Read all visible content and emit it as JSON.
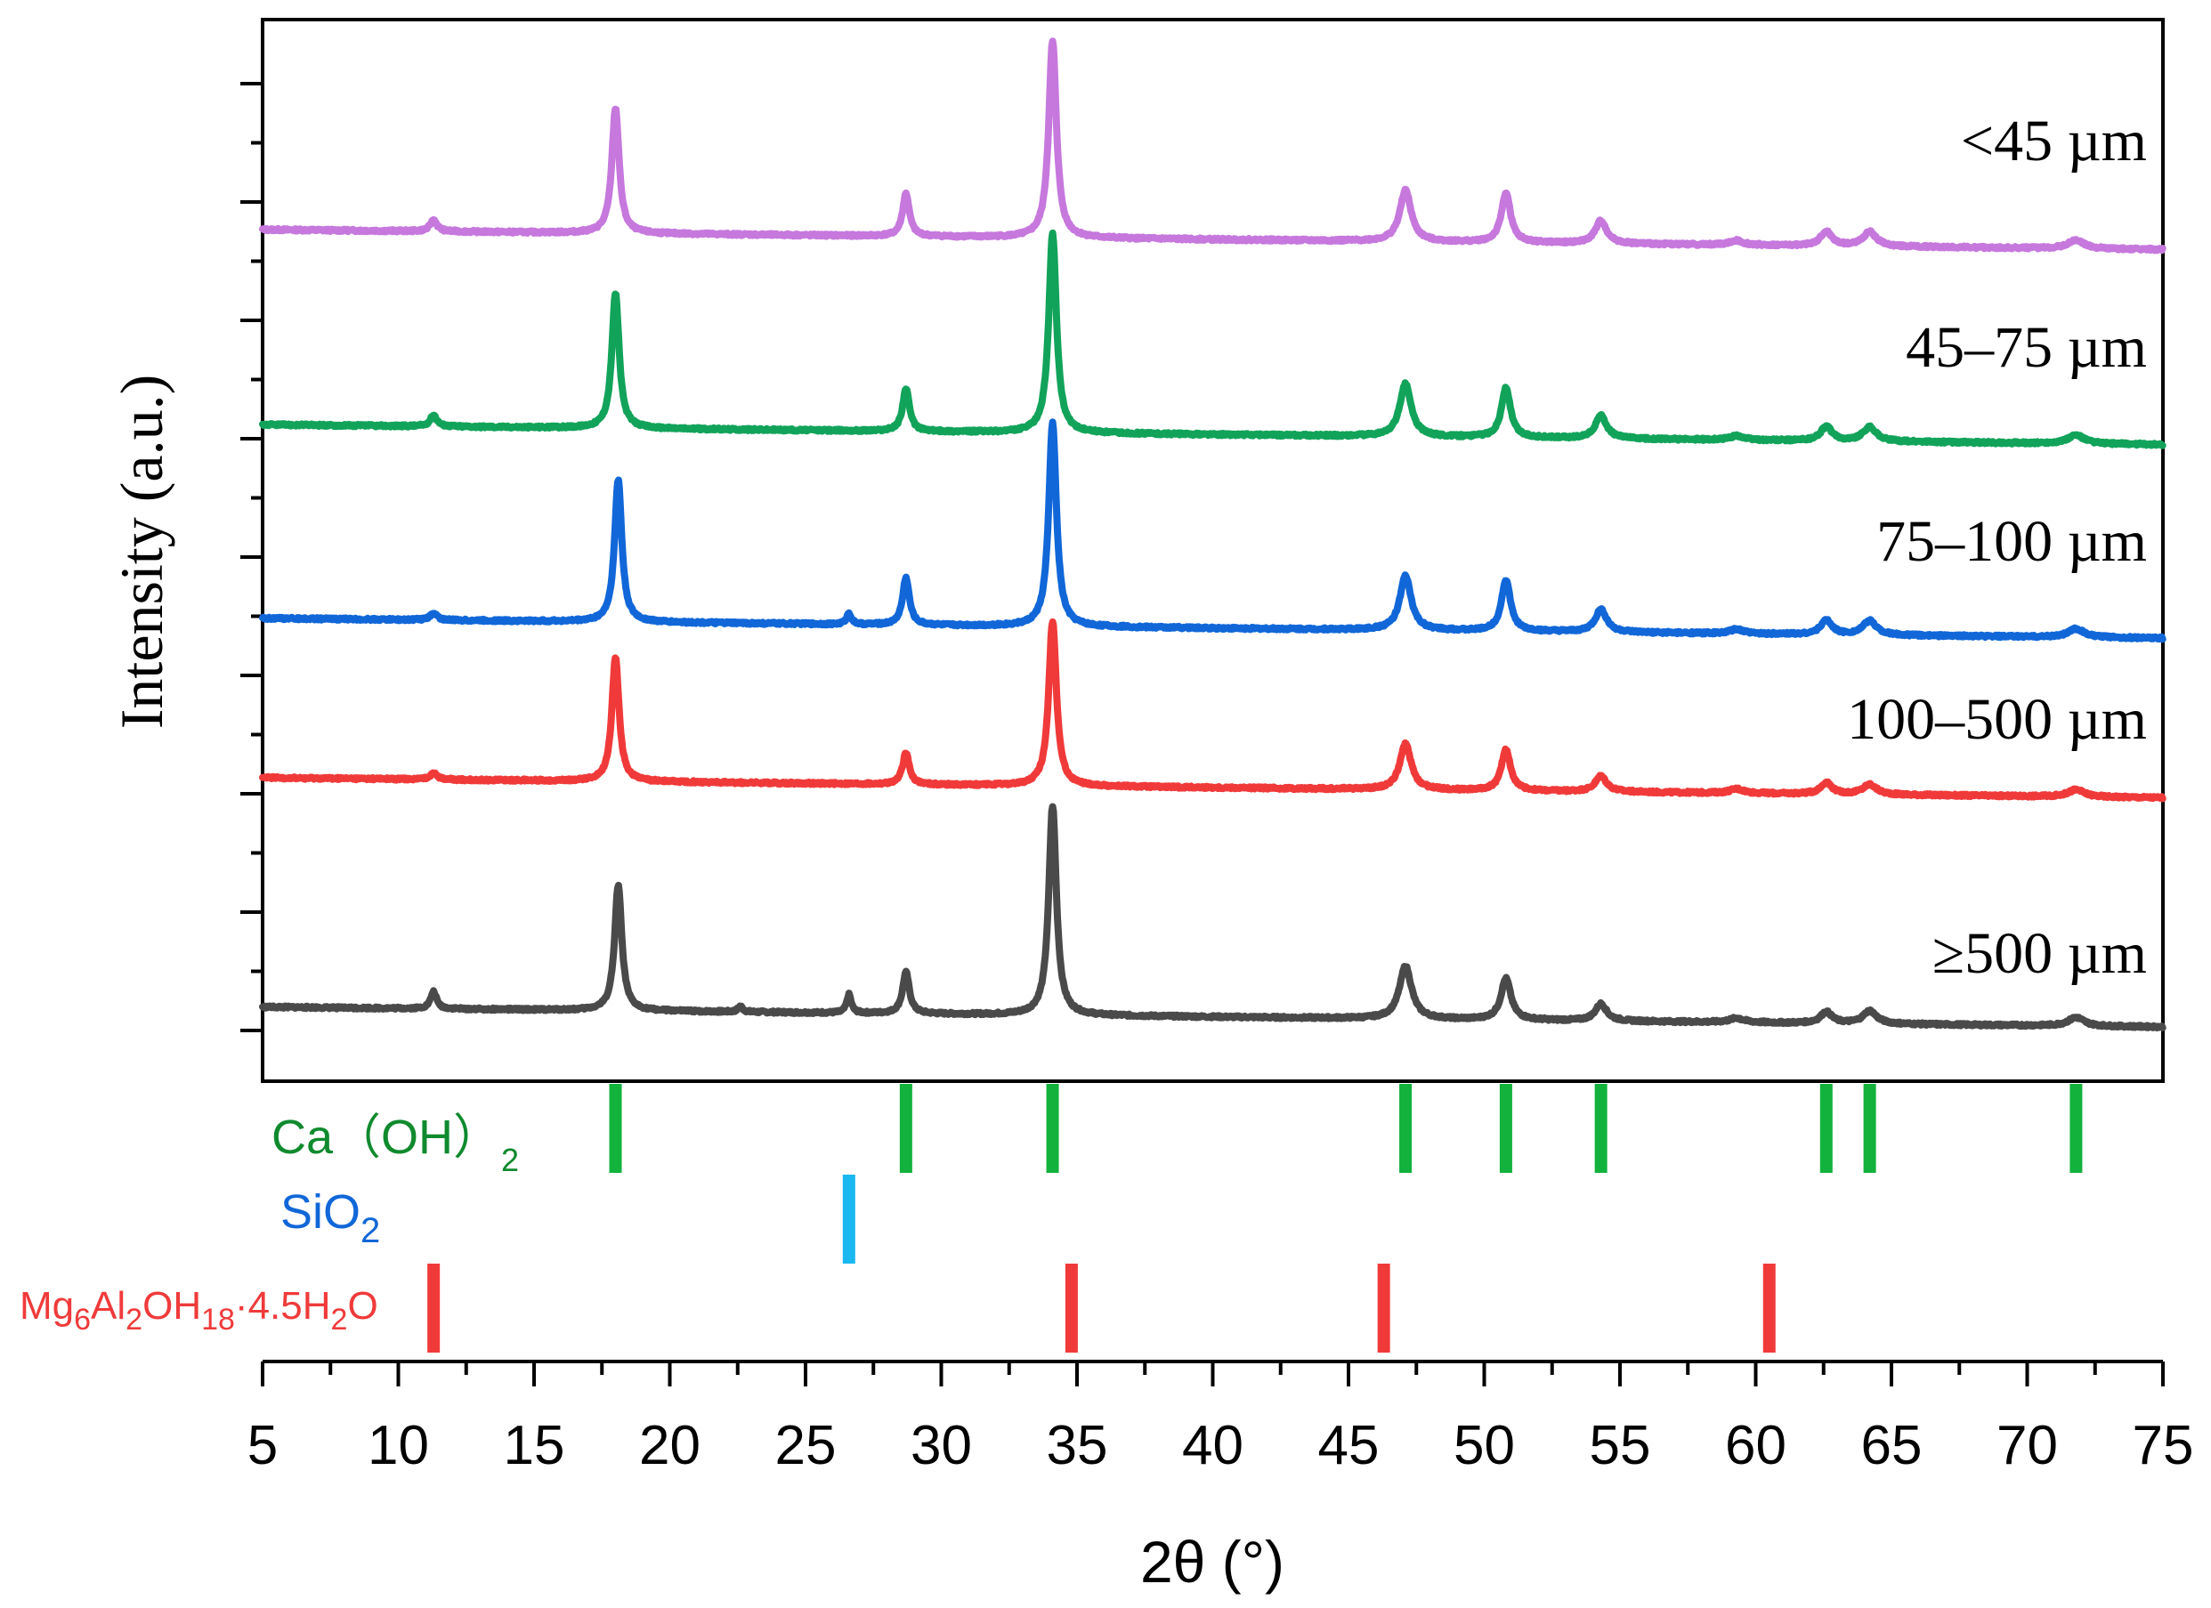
{
  "chart_data": {
    "type": "line",
    "title": "",
    "xlabel": "2θ (°)",
    "ylabel": "Intensity (a.u.)",
    "xlim": [
      5,
      75
    ],
    "xticks": [
      5,
      10,
      15,
      20,
      25,
      30,
      35,
      40,
      45,
      50,
      55,
      60,
      65,
      70,
      75
    ],
    "xtick_labels": [
      "5",
      "10",
      "15",
      "20",
      "25",
      "30",
      "35",
      "40",
      "45",
      "50",
      "55",
      "60",
      "65",
      "70",
      "75"
    ],
    "y_units": "arbitrary (stacked, offset traces)",
    "ylim": [
      0,
      730
    ],
    "series": [
      {
        "name": "<45 µm",
        "color": "#c678dd",
        "baseline": 580,
        "slope": -0.2,
        "peaks": [
          {
            "x": 11.3,
            "height": 8,
            "width": 0.15
          },
          {
            "x": 18.0,
            "height": 88,
            "width": 0.16
          },
          {
            "x": 28.7,
            "height": 30,
            "width": 0.15
          },
          {
            "x": 34.1,
            "height": 138,
            "width": 0.17
          },
          {
            "x": 47.1,
            "height": 36,
            "width": 0.25
          },
          {
            "x": 50.8,
            "height": 35,
            "width": 0.2
          },
          {
            "x": 54.3,
            "height": 16,
            "width": 0.25
          },
          {
            "x": 59.3,
            "height": 3,
            "width": 0.3
          },
          {
            "x": 62.6,
            "height": 10,
            "width": 0.25
          },
          {
            "x": 64.2,
            "height": 10,
            "width": 0.3
          },
          {
            "x": 71.8,
            "height": 6,
            "width": 0.35
          }
        ]
      },
      {
        "name": "45–75 µm",
        "color": "#12a35a",
        "baseline": 443,
        "slope": -0.2,
        "peaks": [
          {
            "x": 11.3,
            "height": 8,
            "width": 0.15
          },
          {
            "x": 18.0,
            "height": 95,
            "width": 0.16
          },
          {
            "x": 28.7,
            "height": 30,
            "width": 0.15
          },
          {
            "x": 34.1,
            "height": 140,
            "width": 0.17
          },
          {
            "x": 47.1,
            "height": 37,
            "width": 0.25
          },
          {
            "x": 50.8,
            "height": 35,
            "width": 0.2
          },
          {
            "x": 54.3,
            "height": 16,
            "width": 0.25
          },
          {
            "x": 59.3,
            "height": 3,
            "width": 0.3
          },
          {
            "x": 62.6,
            "height": 10,
            "width": 0.25
          },
          {
            "x": 64.2,
            "height": 10,
            "width": 0.3
          },
          {
            "x": 71.8,
            "height": 6,
            "width": 0.35
          }
        ]
      },
      {
        "name": "75–100 µm",
        "color": "#1167d8",
        "baseline": 307,
        "slope": -0.2,
        "peaks": [
          {
            "x": 11.3,
            "height": 5,
            "width": 0.15
          },
          {
            "x": 18.1,
            "height": 100,
            "width": 0.16
          },
          {
            "x": 26.6,
            "height": 8,
            "width": 0.1
          },
          {
            "x": 28.7,
            "height": 33,
            "width": 0.15
          },
          {
            "x": 34.1,
            "height": 143,
            "width": 0.17
          },
          {
            "x": 47.1,
            "height": 38,
            "width": 0.25
          },
          {
            "x": 50.8,
            "height": 36,
            "width": 0.2
          },
          {
            "x": 54.3,
            "height": 16,
            "width": 0.25
          },
          {
            "x": 59.3,
            "height": 3,
            "width": 0.3
          },
          {
            "x": 62.6,
            "height": 10,
            "width": 0.25
          },
          {
            "x": 64.2,
            "height": 10,
            "width": 0.3
          },
          {
            "x": 71.8,
            "height": 6,
            "width": 0.35
          }
        ]
      },
      {
        "name": "100–500 µm",
        "color": "#f03a3a",
        "baseline": 195,
        "slope": -0.2,
        "peaks": [
          {
            "x": 11.3,
            "height": 5,
            "width": 0.15
          },
          {
            "x": 18.0,
            "height": 87,
            "width": 0.16
          },
          {
            "x": 28.7,
            "height": 22,
            "width": 0.15
          },
          {
            "x": 34.1,
            "height": 116,
            "width": 0.17
          },
          {
            "x": 47.1,
            "height": 32,
            "width": 0.25
          },
          {
            "x": 50.8,
            "height": 29,
            "width": 0.2
          },
          {
            "x": 54.3,
            "height": 11,
            "width": 0.25
          },
          {
            "x": 59.3,
            "height": 3,
            "width": 0.3
          },
          {
            "x": 62.6,
            "height": 8,
            "width": 0.25
          },
          {
            "x": 64.2,
            "height": 7,
            "width": 0.3
          },
          {
            "x": 71.8,
            "height": 5,
            "width": 0.35
          }
        ]
      },
      {
        "name": "≥500 µm",
        "color": "#4a4a4a",
        "baseline": 34,
        "slope": -0.2,
        "peaks": [
          {
            "x": 11.3,
            "height": 12,
            "width": 0.13
          },
          {
            "x": 18.1,
            "height": 88,
            "width": 0.16
          },
          {
            "x": 22.6,
            "height": 4,
            "width": 0.1
          },
          {
            "x": 26.6,
            "height": 13,
            "width": 0.1
          },
          {
            "x": 28.7,
            "height": 29,
            "width": 0.15
          },
          {
            "x": 34.1,
            "height": 147,
            "width": 0.17
          },
          {
            "x": 47.1,
            "height": 37,
            "width": 0.27
          },
          {
            "x": 50.8,
            "height": 29,
            "width": 0.22
          },
          {
            "x": 54.3,
            "height": 12,
            "width": 0.25
          },
          {
            "x": 59.3,
            "height": 3,
            "width": 0.3
          },
          {
            "x": 62.6,
            "height": 8,
            "width": 0.25
          },
          {
            "x": 64.2,
            "height": 9,
            "width": 0.3
          },
          {
            "x": 71.8,
            "height": 6,
            "width": 0.35
          }
        ]
      }
    ],
    "reference_phases": [
      {
        "name": "Ca（OH）",
        "subscript": "2",
        "color": "#0f8a2e",
        "bar_color": "#12b23c",
        "positions": [
          18.0,
          28.7,
          34.1,
          47.1,
          50.8,
          54.3,
          62.6,
          64.2,
          71.8
        ]
      },
      {
        "name": "SiO",
        "subscript": "2",
        "color": "#1167d8",
        "bar_color": "#1ab8f0",
        "positions": [
          26.6
        ]
      },
      {
        "name_parts": [
          {
            "text": "Mg",
            "sub": false
          },
          {
            "text": "6",
            "sub": true
          },
          {
            "text": "Al",
            "sub": false
          },
          {
            "text": "2",
            "sub": true
          },
          {
            "text": "OH",
            "sub": false
          },
          {
            "text": "18",
            "sub": true
          },
          {
            "text": "·4.5H",
            "sub": false
          },
          {
            "text": "2",
            "sub": true
          },
          {
            "text": "O",
            "sub": false
          }
        ],
        "color": "#f03a3a",
        "bar_color": "#f03a3a",
        "positions": [
          11.3,
          34.8,
          46.3,
          60.5
        ]
      }
    ]
  }
}
